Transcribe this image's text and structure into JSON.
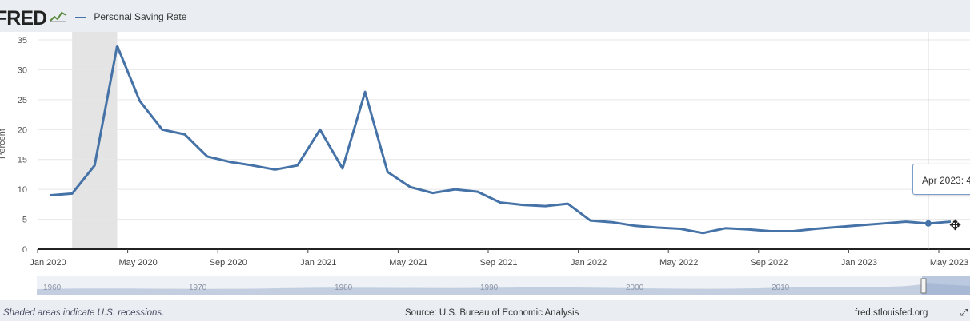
{
  "header": {
    "logo_text": "FRED",
    "legend_label": "Personal Saving Rate",
    "line_color": "#4572a7",
    "recession_color": "#e4e4e4"
  },
  "chart_data": {
    "type": "line",
    "series": [
      {
        "name": "Personal Saving Rate",
        "x": [
          "2020-01",
          "2020-02",
          "2020-03",
          "2020-04",
          "2020-05",
          "2020-06",
          "2020-07",
          "2020-08",
          "2020-09",
          "2020-10",
          "2020-11",
          "2020-12",
          "2021-01",
          "2021-02",
          "2021-03",
          "2021-04",
          "2021-05",
          "2021-06",
          "2021-07",
          "2021-08",
          "2021-09",
          "2021-10",
          "2021-11",
          "2021-12",
          "2022-01",
          "2022-02",
          "2022-03",
          "2022-04",
          "2022-05",
          "2022-06",
          "2022-07",
          "2022-08",
          "2022-09",
          "2022-10",
          "2022-11",
          "2022-12",
          "2023-01",
          "2023-02",
          "2023-03",
          "2023-04",
          "2023-05"
        ],
        "values": [
          9.0,
          9.3,
          14.0,
          34.0,
          24.8,
          20.0,
          19.2,
          15.5,
          14.6,
          14.0,
          13.3,
          14.0,
          20.0,
          13.5,
          26.3,
          12.9,
          10.4,
          9.4,
          10.0,
          9.6,
          7.8,
          7.4,
          7.2,
          7.6,
          4.8,
          4.5,
          3.9,
          3.6,
          3.4,
          2.7,
          3.5,
          3.3,
          3.0,
          3.0,
          3.4,
          3.7,
          4.0,
          4.3,
          4.6,
          4.3,
          4.6
        ]
      }
    ],
    "x_tick_labels": [
      "Jan 2020",
      "May 2020",
      "Sep 2020",
      "Jan 2021",
      "May 2021",
      "Sep 2021",
      "Jan 2022",
      "May 2022",
      "Sep 2022",
      "Jan 2023",
      "May 2023"
    ],
    "y_ticks": [
      0,
      5,
      10,
      15,
      20,
      25,
      30,
      35
    ],
    "ylim": [
      0,
      35
    ],
    "ylabel": "Percent",
    "recession_shading": {
      "start": "2020-02",
      "end": "2020-04"
    },
    "grid": true,
    "legend_position": "top-left",
    "tooltip": "Apr 2023: 4",
    "navigator_labels": [
      "1960",
      "1970",
      "1980",
      "1990",
      "2000",
      "2010"
    ]
  },
  "footer": {
    "recession_note": "Shaded areas indicate U.S. recessions.",
    "source": "Source: U.S. Bureau of Economic Analysis",
    "site": "fred.stlouisfed.org"
  }
}
